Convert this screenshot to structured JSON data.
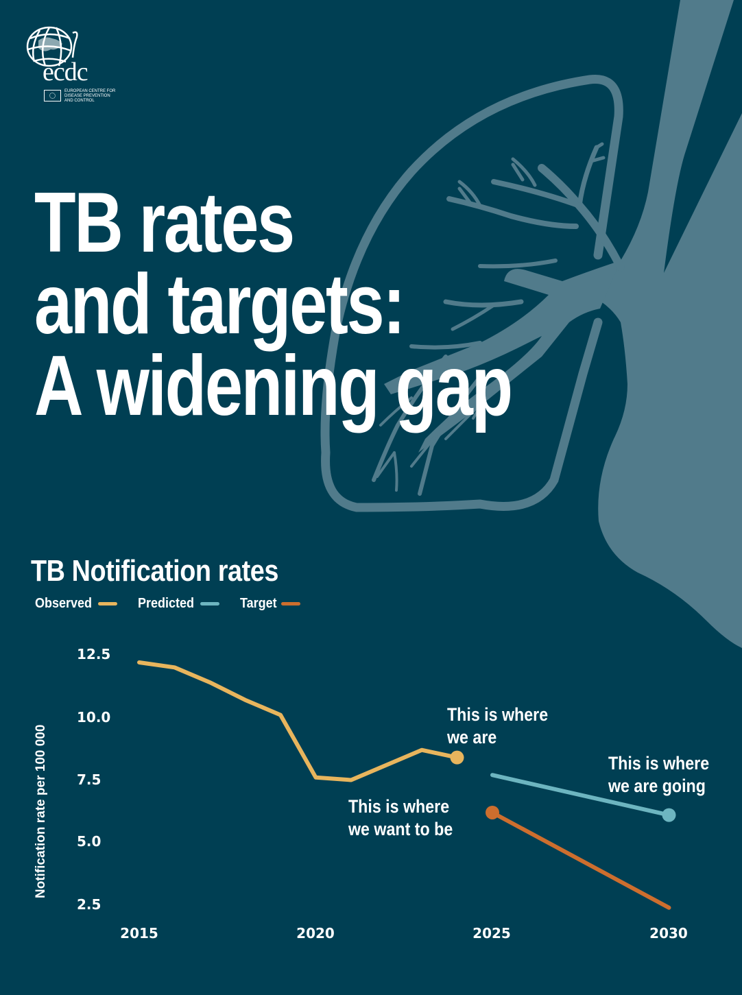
{
  "logo": {
    "wordmark": "ecdc",
    "subtitle_lines": [
      "European Centre for",
      "Disease Prevention",
      "and Control"
    ]
  },
  "header": {
    "title_lines": [
      "TB rates",
      "and targets:",
      "A widening gap"
    ]
  },
  "chart": {
    "title": "TB Notification rates",
    "legend": [
      {
        "label": "Observed",
        "color": "#e8b55d"
      },
      {
        "label": "Predicted",
        "color": "#6db5c0"
      },
      {
        "label": "Target",
        "color": "#cd6e2e"
      }
    ],
    "y_axis_label": "Notification rate per 100 000",
    "y_ticks": [
      "12.5",
      "10.0",
      "7.5",
      "5.0",
      "2.5"
    ],
    "x_ticks": [
      "2015",
      "2020",
      "2025",
      "2030"
    ],
    "annotations": {
      "observed": [
        "This is where",
        "we are"
      ],
      "predicted": [
        "This is where",
        "we are going"
      ],
      "target": [
        "This is where",
        "we want to be"
      ]
    }
  },
  "colors": {
    "background": "#003f53",
    "illustration": "#517b8b",
    "text": "#ffffff",
    "observed": "#e8b55d",
    "predicted": "#6db5c0",
    "target": "#cd6e2e"
  },
  "chart_data": {
    "type": "line",
    "title": "TB Notification rates",
    "xlabel": "",
    "ylabel": "Notification rate per 100 000",
    "x_ticks": [
      2015,
      2020,
      2025,
      2030
    ],
    "y_ticks": [
      2.5,
      5.0,
      7.5,
      10.0,
      12.5
    ],
    "ylim": [
      2.5,
      12.5
    ],
    "xlim": [
      2015,
      2030
    ],
    "grid": false,
    "legend_position": "top-left",
    "series": [
      {
        "name": "Observed",
        "color": "#e8b55d",
        "x": [
          2015,
          2016,
          2017,
          2018,
          2019,
          2020,
          2021,
          2022,
          2023,
          2024
        ],
        "values": [
          12.2,
          12.0,
          11.4,
          10.7,
          10.1,
          7.6,
          7.5,
          8.1,
          8.7,
          8.4
        ],
        "end_marker": true,
        "annotation": "This is where we are"
      },
      {
        "name": "Predicted",
        "color": "#6db5c0",
        "x": [
          2025,
          2030
        ],
        "values": [
          7.7,
          6.1
        ],
        "end_marker": true,
        "annotation": "This is where we are going"
      },
      {
        "name": "Target",
        "color": "#cd6e2e",
        "x": [
          2025,
          2030
        ],
        "values": [
          6.2,
          2.4
        ],
        "start_marker": true,
        "annotation": "This is where we want to be"
      }
    ]
  }
}
